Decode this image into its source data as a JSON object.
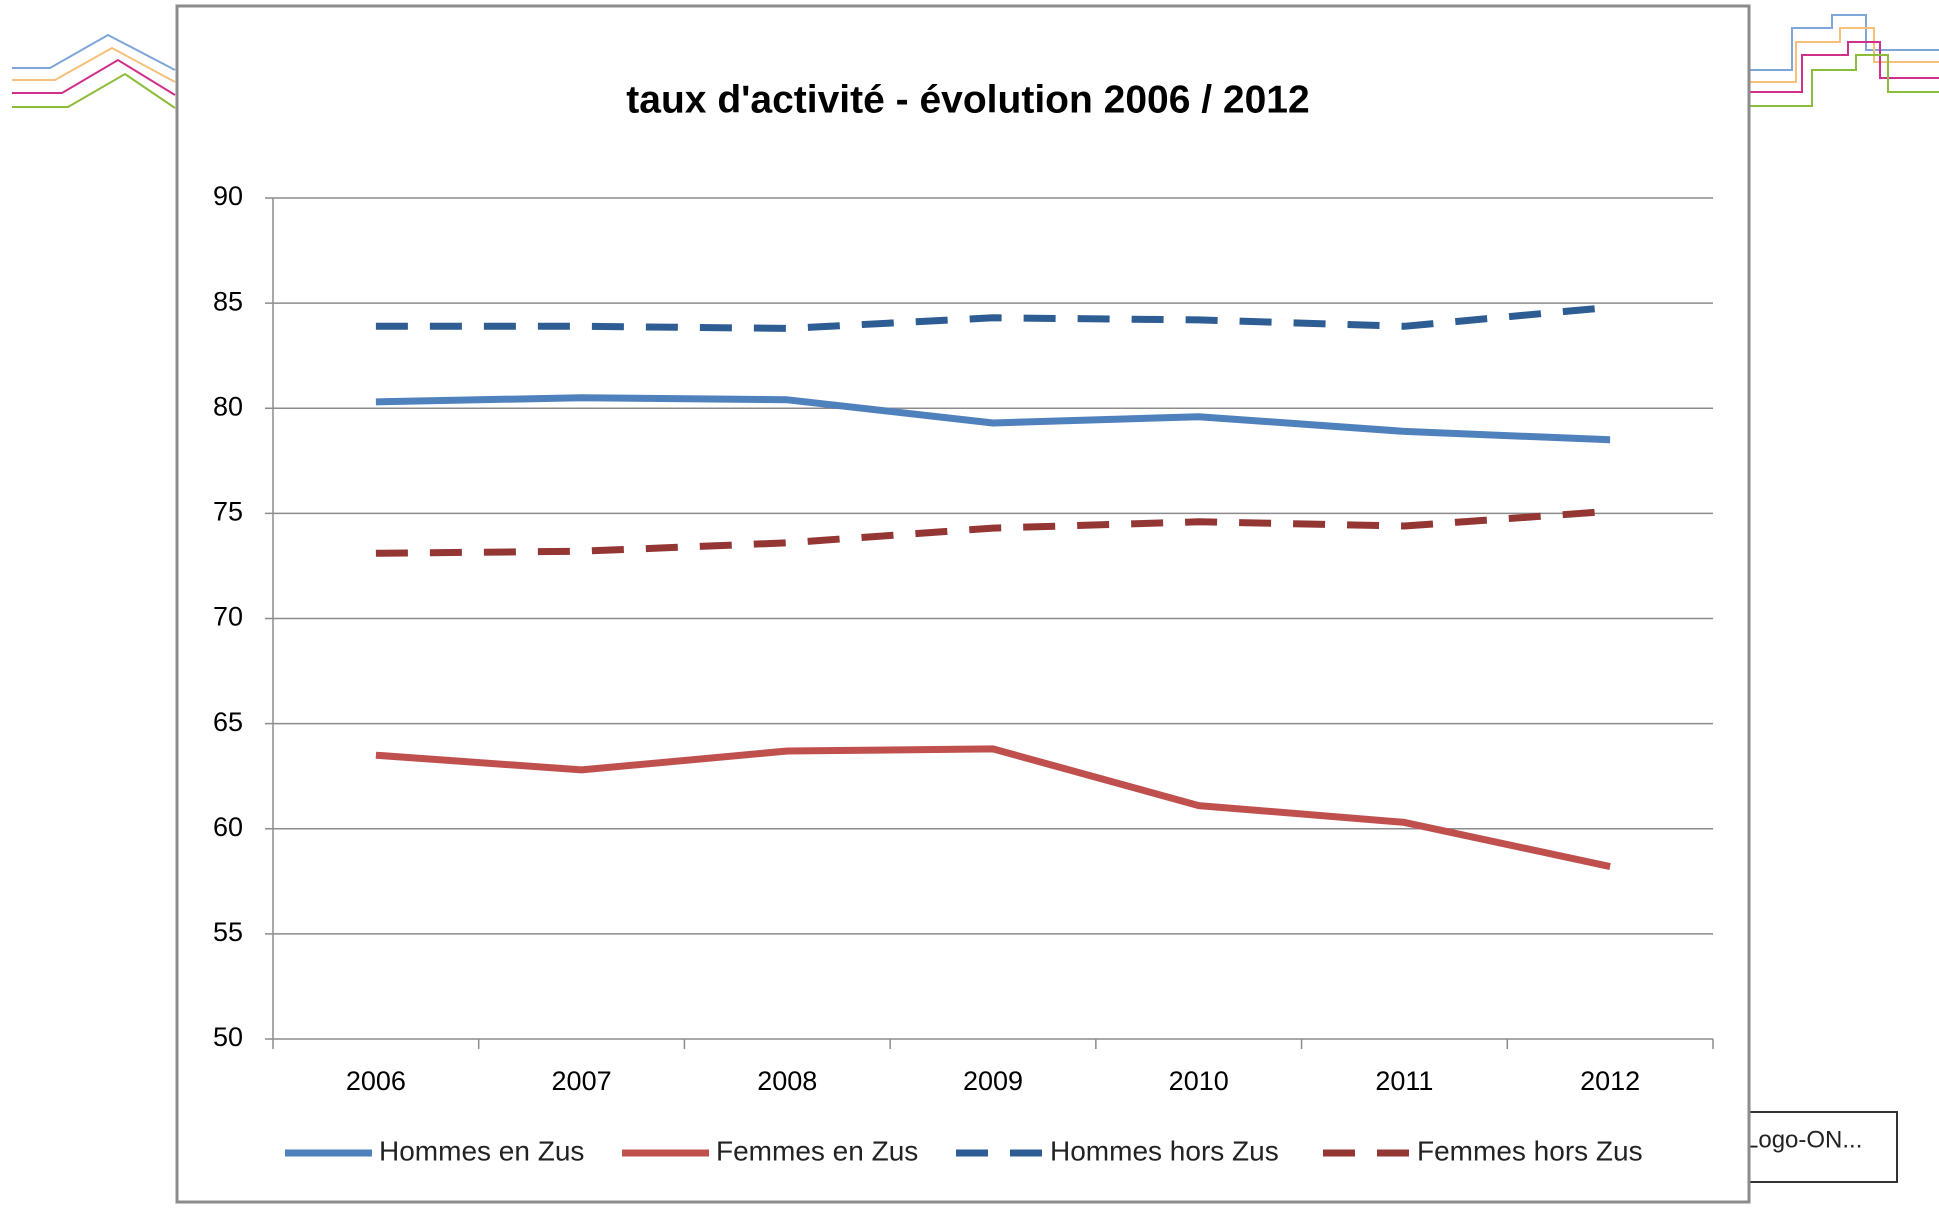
{
  "chart_data": {
    "type": "line",
    "title": "taux d'activité - évolution 2006 / 2012",
    "categories": [
      "2006",
      "2007",
      "2008",
      "2009",
      "2010",
      "2011",
      "2012"
    ],
    "series": [
      {
        "name": "Hommes en Zus",
        "color": "#4f81bd",
        "dashed": false,
        "values": [
          80.3,
          80.5,
          80.4,
          79.3,
          79.6,
          78.9,
          78.5
        ]
      },
      {
        "name": "Femmes en Zus",
        "color": "#c0504d",
        "dashed": false,
        "values": [
          63.5,
          62.8,
          63.7,
          63.8,
          61.1,
          60.3,
          58.2
        ]
      },
      {
        "name": "Hommes hors Zus",
        "color": "#2e5d94",
        "dashed": true,
        "values": [
          83.9,
          83.9,
          83.8,
          84.3,
          84.2,
          83.9,
          84.8
        ]
      },
      {
        "name": "Femmes hors Zus",
        "color": "#943634",
        "dashed": true,
        "values": [
          73.1,
          73.2,
          73.6,
          74.3,
          74.6,
          74.4,
          75.1
        ]
      }
    ],
    "ylim": [
      50,
      90
    ],
    "yticks": [
      50,
      55,
      60,
      65,
      70,
      75,
      80,
      85,
      90
    ],
    "grid": true,
    "legend": "bottom"
  },
  "logo_label": "Logo-ON..."
}
